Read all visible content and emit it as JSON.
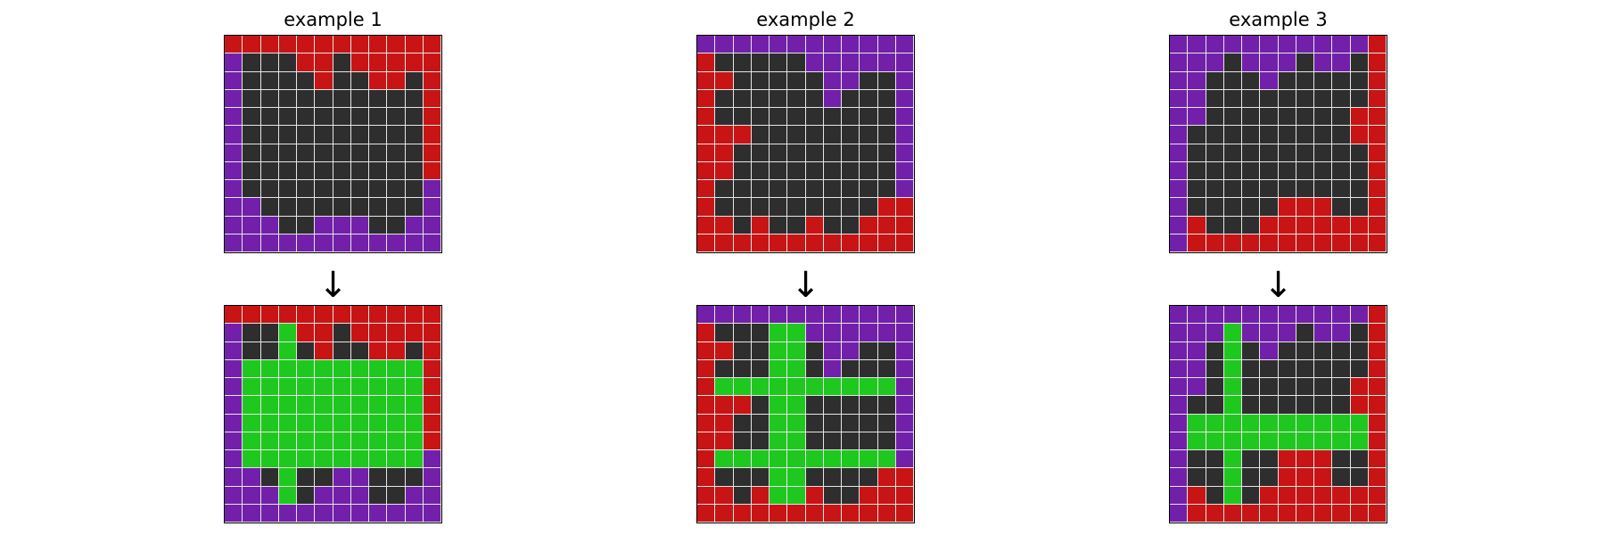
{
  "colors": {
    "K": "#2e2e2e",
    "R": "#c81414",
    "P": "#7220aa",
    "G": "#1fc81f"
  },
  "examples": [
    {
      "title": "example 1",
      "arrow": "↓",
      "input": [
        "RRRRRRRRRRRR",
        "PKKKRRKRRRRR",
        "PKKKKRKKRRKR",
        "PKKKKKKKKKKR",
        "PKKKKKKKKKKR",
        "PKKKKKKKKKKR",
        "PKKKKKKKKKKR",
        "PKKKKKKKKKKR",
        "PKKKKKKKKKKP",
        "PPKKKKKKKKKP",
        "PPPKKPPPKKPP",
        "PPPPPPPPPPPP"
      ],
      "output": [
        "RRRRRRRRRRRR",
        "PKKGRRKRRRRR",
        "PKKGKRKKRRKR",
        "PGGGGGGGGGGR",
        "PGGGGGGGGGGR",
        "PGGGGGGGGGGR",
        "PGGGGGGGGGGR",
        "PGGGGGGGGGGR",
        "PGGGGGGGGGGP",
        "PPKGKKPPKKKP",
        "PPPGKPPPKKPP",
        "PPPPPPPPPPPP"
      ]
    },
    {
      "title": "example 2",
      "arrow": "↓",
      "input": [
        "PPPPPPPPPPPP",
        "RKKKKKPPPPPP",
        "RRKKKKKPPKKP",
        "RKKKKKKPKKKP",
        "RKKKKKKKKKKP",
        "RRRKKKKKKKKP",
        "RRKKKKKKKKKP",
        "RRKKKKKKKKKP",
        "RKKKKKKKKKKP",
        "RKKKKKKKKKRR",
        "RRKRKKRKKRRR",
        "RRRRRRRRRRRR"
      ],
      "output": [
        "PPPPPPPPPPPP",
        "RKKKGGPPPPPP",
        "RRKKGGKPPKKP",
        "RKKKGGKPKKKP",
        "RGGGGGGGGGGP",
        "RRRKGGKKKKKP",
        "RRKKGGKKKKKP",
        "RRKKGGKKKKKP",
        "RGGGGGGGGGGP",
        "RKKKGGKKKKRR",
        "RRKRGGRKKRRR",
        "RRRRRRRRRRRR"
      ]
    },
    {
      "title": "example 3",
      "arrow": "↓",
      "input": [
        "PPPPPPPPPPPR",
        "PPPKPPPKPPKR",
        "PPKKKPKKKKKR",
        "PPKKKKKKKKKR",
        "PPKKKKKKKKRR",
        "PKKKKKKKKKRR",
        "PKKKKKKKKKKR",
        "PKKKKKKKKKKR",
        "PKKKKKKKKKKR",
        "PKKKKKRRRKKR",
        "PRKKKRRRRRRR",
        "PRRRRRRRRRRR"
      ],
      "output": [
        "PPPPPPPPPPPR",
        "PPPGPPPKPPKR",
        "PPKGKPKKKKKR",
        "PPKGKKKKKKKR",
        "PPKGKKKKKKRR",
        "PKKGKKKKKKRR",
        "PGGGGGGGGGGR",
        "PGGGGGGGGGGR",
        "PKKGKKRRRKKR",
        "PKKGKKRRRKKR",
        "PRKGKRRRRRRR",
        "PRRRRRRRRRRR"
      ]
    }
  ]
}
